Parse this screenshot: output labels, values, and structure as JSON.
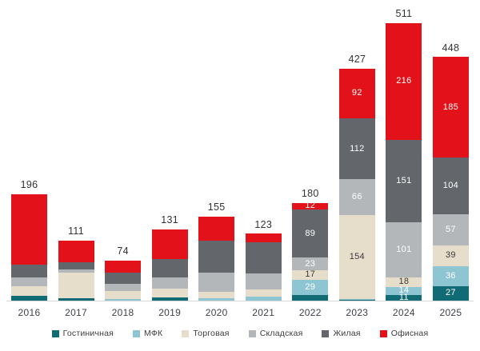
{
  "chart_data": {
    "type": "bar",
    "stacked": true,
    "grid": false,
    "legend_position": "bottom",
    "categories": [
      "2016",
      "2017",
      "2018",
      "2019",
      "2020",
      "2021",
      "2022",
      "2023",
      "2024",
      "2025"
    ],
    "totals": [
      196,
      111,
      74,
      131,
      155,
      123,
      180,
      427,
      511,
      448
    ],
    "series": [
      {
        "name": "Гостиничная",
        "color": "#116b74",
        "label_text_color": "#ffffff",
        "values": [
          9,
          4,
          0,
          6,
          0,
          0,
          10,
          1,
          11,
          27
        ]
      },
      {
        "name": "МФК",
        "color": "#8ec5d3",
        "label_text_color": "#ffffff",
        "values": [
          0,
          0,
          3,
          0,
          4,
          7,
          29,
          2,
          14,
          36
        ]
      },
      {
        "name": "Торговая",
        "color": "#e7ddcb",
        "label_text_color": "#3a3a3a",
        "values": [
          18,
          48,
          15,
          16,
          12,
          13,
          17,
          154,
          18,
          39
        ]
      },
      {
        "name": "Складская",
        "color": "#b4b7ba",
        "label_text_color": "#ffffff",
        "values": [
          16,
          5,
          13,
          20,
          35,
          30,
          23,
          66,
          101,
          57
        ]
      },
      {
        "name": "Жилая",
        "color": "#63666a",
        "label_text_color": "#ffffff",
        "values": [
          24,
          14,
          20,
          35,
          59,
          57,
          89,
          112,
          151,
          104
        ]
      },
      {
        "name": "Офисная",
        "color": "#e31119",
        "label_text_color": "#ffffff",
        "values": [
          129,
          40,
          23,
          54,
          45,
          16,
          12,
          92,
          216,
          185
        ]
      }
    ],
    "segment_labels": {
      "first_labeled_category": "2022",
      "first_labeled_index": 6,
      "min_value_to_show": 11
    },
    "ylim": [
      0,
      520
    ],
    "axis_line_color": "#d9d9d9",
    "total_label_color": "#333333"
  }
}
